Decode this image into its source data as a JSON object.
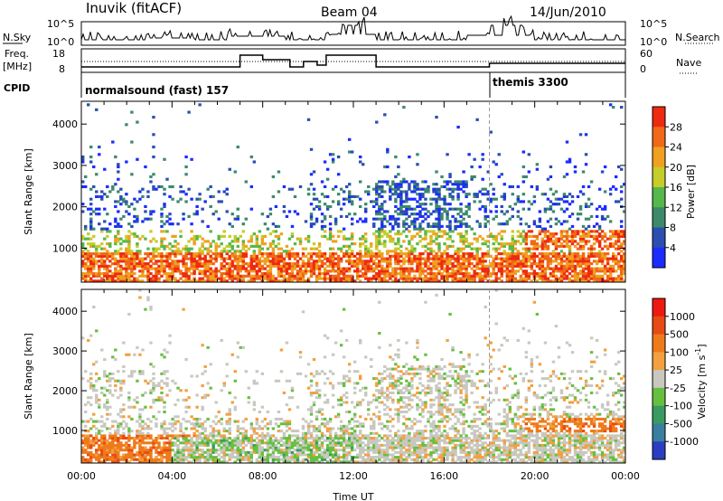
{
  "header": {
    "station": "Inuvik (fitACF)",
    "beam": "Beam 04",
    "date": "14/Jun/2010"
  },
  "top_panels": {
    "nsky_label": "N.Sky",
    "nsky_ticks": [
      "10^5",
      "10^0"
    ],
    "nsearch_label": "N.Search",
    "nsearch_ticks": [
      "10^5",
      "10^0"
    ],
    "freq_label_1": "Freq.",
    "freq_label_2": "[MHz]",
    "freq_ticks": [
      "18",
      "8"
    ],
    "nave_label": "Nave",
    "nave_ticks": [
      "60",
      "0"
    ],
    "cpid_label": "CPID",
    "cpid_segments": [
      {
        "name": "normalsound (fast)",
        "id": "157",
        "start_hour": 0
      },
      {
        "name": "themis",
        "id": "3300",
        "start_hour": 18
      }
    ]
  },
  "chart_data": [
    {
      "type": "heatmap",
      "title": "Power",
      "ylabel": "Slant Range [km]",
      "xlabel": "",
      "xlim_hours": [
        0,
        24
      ],
      "ylim": [
        180,
        4550
      ],
      "x_ticks": [
        "00:00",
        "04:00",
        "08:00",
        "12:00",
        "16:00",
        "20:00",
        "00:00"
      ],
      "y_ticks": [
        1000,
        2000,
        3000,
        4000
      ],
      "colorbar": {
        "label": "Power [dB]",
        "ticks": [
          "4",
          "8",
          "12",
          "16",
          "20",
          "24",
          "28"
        ],
        "colors": [
          "#1a2cff",
          "#2a4fb0",
          "#3d8a6a",
          "#55b84a",
          "#c6cc2a",
          "#f0a020",
          "#f06818",
          "#ee2a10"
        ]
      }
    },
    {
      "type": "heatmap",
      "title": "Velocity",
      "ylabel": "Slant Range [km]",
      "xlabel": "Time UT",
      "xlim_hours": [
        0,
        24
      ],
      "ylim": [
        180,
        4550
      ],
      "x_ticks": [
        "00:00",
        "04:00",
        "08:00",
        "12:00",
        "16:00",
        "20:00",
        "00:00"
      ],
      "y_ticks": [
        1000,
        2000,
        3000,
        4000
      ],
      "colorbar": {
        "label": "Velocity [m s^-1]",
        "ticks": [
          "1000",
          "500",
          "100",
          "25",
          "-25",
          "-100",
          "-500",
          "-1000"
        ],
        "colors": [
          "#2a3fc0",
          "#3a7fa0",
          "#3a9a60",
          "#66c040",
          "#c8c8c0",
          "#f2a040",
          "#ee7a1c",
          "#e84a14",
          "#ee1a10"
        ]
      }
    }
  ]
}
